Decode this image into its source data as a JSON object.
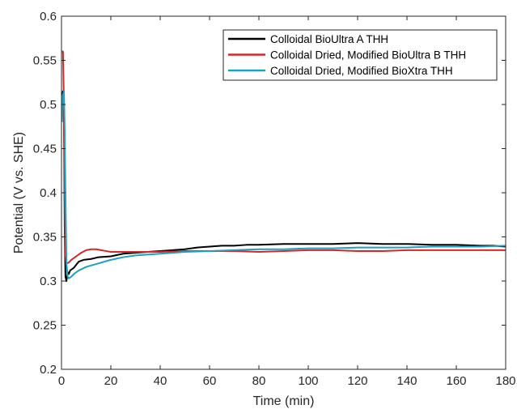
{
  "chart_data": {
    "type": "line",
    "title": "",
    "xlabel": "Time (min)",
    "ylabel": "Potential (V vs. SHE)",
    "xlim": [
      0,
      180
    ],
    "ylim": [
      0.2,
      0.6
    ],
    "xticks": [
      0,
      20,
      40,
      60,
      80,
      100,
      120,
      140,
      160,
      180
    ],
    "yticks": [
      0.2,
      0.25,
      0.3,
      0.35,
      0.4,
      0.45,
      0.5,
      0.55,
      0.6
    ],
    "xtick_labels": [
      "0",
      "20",
      "40",
      "60",
      "80",
      "100",
      "120",
      "140",
      "160",
      "180"
    ],
    "ytick_labels": [
      "0.2",
      "0.25",
      "0.3",
      "0.35",
      "0.4",
      "0.45",
      "0.5",
      "0.55",
      "0.6"
    ],
    "grid": false,
    "legend_position": "top-right",
    "series": [
      {
        "name": "Colloidal BioUltra A THH",
        "color": "#000000",
        "points": [
          [
            0.2,
            0.51
          ],
          [
            0.6,
            0.515
          ],
          [
            1.0,
            0.48
          ],
          [
            1.3,
            0.36
          ],
          [
            1.6,
            0.305
          ],
          [
            2,
            0.3
          ],
          [
            2.5,
            0.31
          ],
          [
            3,
            0.308
          ],
          [
            3.5,
            0.312
          ],
          [
            5,
            0.315
          ],
          [
            7,
            0.322
          ],
          [
            9,
            0.324
          ],
          [
            12,
            0.325
          ],
          [
            15,
            0.327
          ],
          [
            20,
            0.328
          ],
          [
            25,
            0.331
          ],
          [
            30,
            0.332
          ],
          [
            35,
            0.333
          ],
          [
            40,
            0.334
          ],
          [
            45,
            0.335
          ],
          [
            50,
            0.336
          ],
          [
            55,
            0.338
          ],
          [
            60,
            0.339
          ],
          [
            65,
            0.34
          ],
          [
            70,
            0.34
          ],
          [
            75,
            0.341
          ],
          [
            80,
            0.341
          ],
          [
            90,
            0.342
          ],
          [
            100,
            0.342
          ],
          [
            110,
            0.342
          ],
          [
            120,
            0.343
          ],
          [
            130,
            0.342
          ],
          [
            140,
            0.342
          ],
          [
            150,
            0.341
          ],
          [
            160,
            0.341
          ],
          [
            170,
            0.34
          ],
          [
            175,
            0.34
          ],
          [
            180,
            0.339
          ]
        ]
      },
      {
        "name": "Colloidal Dried, Modified BioUltra B THH",
        "color": "#d62728",
        "points": [
          [
            0.2,
            0.56
          ],
          [
            0.6,
            0.56
          ],
          [
            1.0,
            0.5
          ],
          [
            1.3,
            0.4
          ],
          [
            1.6,
            0.33
          ],
          [
            2,
            0.32
          ],
          [
            3,
            0.321
          ],
          [
            4,
            0.324
          ],
          [
            6,
            0.328
          ],
          [
            8,
            0.332
          ],
          [
            10,
            0.335
          ],
          [
            12,
            0.336
          ],
          [
            14,
            0.336
          ],
          [
            16,
            0.335
          ],
          [
            18,
            0.334
          ],
          [
            20,
            0.333
          ],
          [
            25,
            0.333
          ],
          [
            30,
            0.333
          ],
          [
            40,
            0.333
          ],
          [
            50,
            0.334
          ],
          [
            60,
            0.334
          ],
          [
            70,
            0.334
          ],
          [
            80,
            0.333
          ],
          [
            90,
            0.334
          ],
          [
            100,
            0.335
          ],
          [
            110,
            0.335
          ],
          [
            120,
            0.334
          ],
          [
            130,
            0.334
          ],
          [
            140,
            0.335
          ],
          [
            150,
            0.335
          ],
          [
            160,
            0.335
          ],
          [
            170,
            0.335
          ],
          [
            180,
            0.335
          ]
        ]
      },
      {
        "name": "Colloidal Dried, Modified BioXtra THH",
        "color": "#1aa1c4",
        "points": [
          [
            0.2,
            0.48
          ],
          [
            0.5,
            0.51
          ],
          [
            1.0,
            0.515
          ],
          [
            1.3,
            0.47
          ],
          [
            1.6,
            0.4
          ],
          [
            2,
            0.32
          ],
          [
            2.5,
            0.305
          ],
          [
            3,
            0.303
          ],
          [
            4,
            0.305
          ],
          [
            5,
            0.308
          ],
          [
            7,
            0.312
          ],
          [
            10,
            0.316
          ],
          [
            15,
            0.32
          ],
          [
            20,
            0.324
          ],
          [
            25,
            0.327
          ],
          [
            30,
            0.329
          ],
          [
            40,
            0.331
          ],
          [
            50,
            0.333
          ],
          [
            60,
            0.334
          ],
          [
            70,
            0.335
          ],
          [
            80,
            0.336
          ],
          [
            90,
            0.336
          ],
          [
            100,
            0.337
          ],
          [
            110,
            0.337
          ],
          [
            120,
            0.338
          ],
          [
            130,
            0.338
          ],
          [
            140,
            0.338
          ],
          [
            150,
            0.339
          ],
          [
            160,
            0.339
          ],
          [
            170,
            0.339
          ],
          [
            180,
            0.34
          ]
        ]
      }
    ]
  }
}
